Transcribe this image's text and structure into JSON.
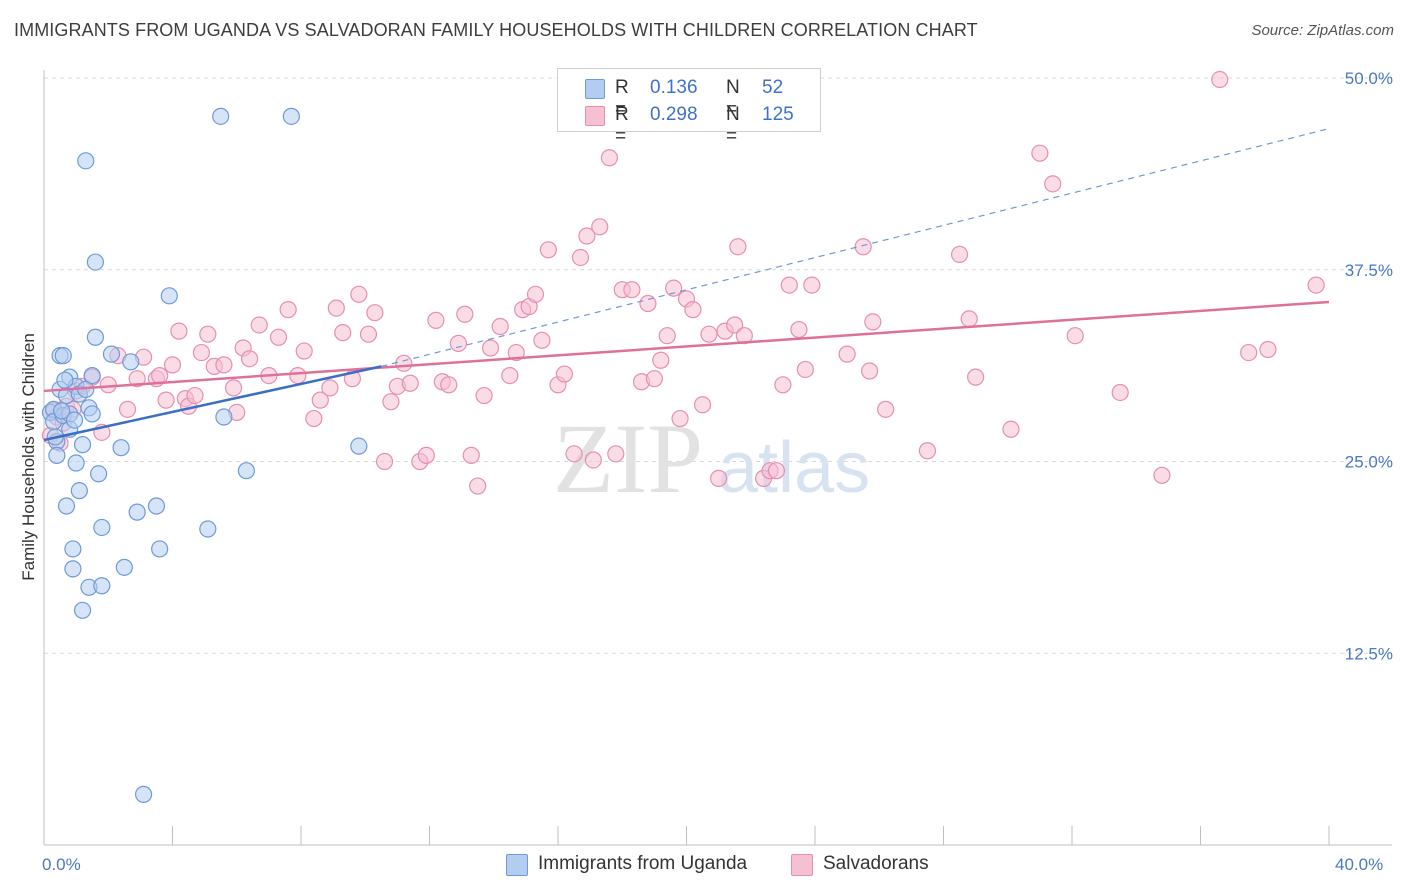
{
  "title": "IMMIGRANTS FROM UGANDA VS SALVADORAN FAMILY HOUSEHOLDS WITH CHILDREN CORRELATION CHART",
  "source": "Source: ZipAtlas.com",
  "watermark": {
    "zip": "ZIP",
    "atlas": "atlas"
  },
  "colors": {
    "blue_fill": "#b3cdf0",
    "blue_stroke": "#6f9ad9",
    "blue_line": "#3a6fc4",
    "pink_fill": "#f6c0d3",
    "pink_stroke": "#e68fb0",
    "pink_line": "#e0709a",
    "grid": "#d9d9d9",
    "axis_text": "#4a78c2"
  },
  "legend": {
    "series": [
      {
        "r_label": "R =",
        "r_value": "0.136",
        "n_label": "N =",
        "n_value": "52"
      },
      {
        "r_label": "R =",
        "r_value": "0.298",
        "n_label": "N =",
        "n_value": "125"
      }
    ]
  },
  "bottom_legend": [
    "Immigrants from Uganda",
    "Salvadorans"
  ],
  "chart_data": {
    "type": "scatter",
    "title": "IMMIGRANTS FROM UGANDA VS SALVADORAN FAMILY HOUSEHOLDS WITH CHILDREN CORRELATION CHART",
    "xlabel": "",
    "ylabel": "Family Households with Children",
    "xlim": [
      0,
      40
    ],
    "ylim": [
      0,
      52.5
    ],
    "x_tick_labels": [
      "0.0%",
      "40.0%"
    ],
    "y_ticks": [
      12.5,
      25.0,
      37.5,
      50.0
    ],
    "y_tick_labels": [
      "12.5%",
      "25.0%",
      "37.5%",
      "50.0%"
    ],
    "grid": true,
    "series": [
      {
        "name": "Immigrants from Uganda",
        "color": "#6f9ad9",
        "trend": {
          "x": [
            0,
            10.5
          ],
          "y": [
            26.4,
            31.2
          ],
          "dashed_to": [
            40,
            46.7
          ]
        },
        "points": [
          [
            0.2,
            28.2
          ],
          [
            0.3,
            28.4
          ],
          [
            0.3,
            27.6
          ],
          [
            0.4,
            26.3
          ],
          [
            0.4,
            25.4
          ],
          [
            0.5,
            31.9
          ],
          [
            0.5,
            29.7
          ],
          [
            0.6,
            31.9
          ],
          [
            0.6,
            28.0
          ],
          [
            0.7,
            29.3
          ],
          [
            0.7,
            22.1
          ],
          [
            0.8,
            30.5
          ],
          [
            0.8,
            28.1
          ],
          [
            0.8,
            27.1
          ],
          [
            0.9,
            19.3
          ],
          [
            0.9,
            18.0
          ],
          [
            1.0,
            29.9
          ],
          [
            1.0,
            24.9
          ],
          [
            1.1,
            29.4
          ],
          [
            1.1,
            23.1
          ],
          [
            1.2,
            15.3
          ],
          [
            1.2,
            26.1
          ],
          [
            1.3,
            44.6
          ],
          [
            1.3,
            29.7
          ],
          [
            1.4,
            16.8
          ],
          [
            1.4,
            28.5
          ],
          [
            1.5,
            28.1
          ],
          [
            1.5,
            30.6
          ],
          [
            1.6,
            38.0
          ],
          [
            1.6,
            33.1
          ],
          [
            1.7,
            24.2
          ],
          [
            1.8,
            20.7
          ],
          [
            1.8,
            16.9
          ],
          [
            2.1,
            32.0
          ],
          [
            2.4,
            25.9
          ],
          [
            2.5,
            18.1
          ],
          [
            2.7,
            31.5
          ],
          [
            2.9,
            21.7
          ],
          [
            3.1,
            3.3
          ],
          [
            3.5,
            22.1
          ],
          [
            3.6,
            19.3
          ],
          [
            3.9,
            35.8
          ],
          [
            5.1,
            20.6
          ],
          [
            5.5,
            47.5
          ],
          [
            5.6,
            27.9
          ],
          [
            6.3,
            24.4
          ],
          [
            7.7,
            47.5
          ],
          [
            9.8,
            26.0
          ],
          [
            0.35,
            26.6
          ],
          [
            0.55,
            28.3
          ],
          [
            0.65,
            30.3
          ],
          [
            0.95,
            27.7
          ]
        ]
      },
      {
        "name": "Salvadorans",
        "color": "#e68fb0",
        "trend": {
          "x": [
            0,
            40
          ],
          "y": [
            29.6,
            35.4
          ]
        },
        "points": [
          [
            0.2,
            26.7
          ],
          [
            0.3,
            28.3
          ],
          [
            0.4,
            27.9
          ],
          [
            0.5,
            26.2
          ],
          [
            0.6,
            27.5
          ],
          [
            0.7,
            28.6
          ],
          [
            0.9,
            28.4
          ],
          [
            1.0,
            29.6
          ],
          [
            1.2,
            29.9
          ],
          [
            1.5,
            30.5
          ],
          [
            1.8,
            26.9
          ],
          [
            2.0,
            30.0
          ],
          [
            2.3,
            31.9
          ],
          [
            2.6,
            28.4
          ],
          [
            2.9,
            30.4
          ],
          [
            3.1,
            31.8
          ],
          [
            3.5,
            30.4
          ],
          [
            3.6,
            30.6
          ],
          [
            3.8,
            29.0
          ],
          [
            4.0,
            31.3
          ],
          [
            4.2,
            33.5
          ],
          [
            4.4,
            29.1
          ],
          [
            4.5,
            28.6
          ],
          [
            4.7,
            29.3
          ],
          [
            4.9,
            32.1
          ],
          [
            5.1,
            33.3
          ],
          [
            5.3,
            31.2
          ],
          [
            5.6,
            31.3
          ],
          [
            5.9,
            29.8
          ],
          [
            6.0,
            28.2
          ],
          [
            6.2,
            32.4
          ],
          [
            6.4,
            31.7
          ],
          [
            6.7,
            33.9
          ],
          [
            7.0,
            30.6
          ],
          [
            7.3,
            33.1
          ],
          [
            7.6,
            34.9
          ],
          [
            7.9,
            30.6
          ],
          [
            8.1,
            32.2
          ],
          [
            8.4,
            27.8
          ],
          [
            8.6,
            29.0
          ],
          [
            8.9,
            29.8
          ],
          [
            9.1,
            35.0
          ],
          [
            9.3,
            33.4
          ],
          [
            9.6,
            30.4
          ],
          [
            9.8,
            35.9
          ],
          [
            10.1,
            33.3
          ],
          [
            10.3,
            34.7
          ],
          [
            10.6,
            25.0
          ],
          [
            10.8,
            28.9
          ],
          [
            11.0,
            29.9
          ],
          [
            11.2,
            31.4
          ],
          [
            11.4,
            30.1
          ],
          [
            11.7,
            25.0
          ],
          [
            11.9,
            25.4
          ],
          [
            12.2,
            34.2
          ],
          [
            12.4,
            30.2
          ],
          [
            12.6,
            30.0
          ],
          [
            12.9,
            32.7
          ],
          [
            13.1,
            34.6
          ],
          [
            13.3,
            25.4
          ],
          [
            13.5,
            23.4
          ],
          [
            13.7,
            29.3
          ],
          [
            13.9,
            32.4
          ],
          [
            14.2,
            33.8
          ],
          [
            14.5,
            30.6
          ],
          [
            14.7,
            32.1
          ],
          [
            14.9,
            34.9
          ],
          [
            15.1,
            35.1
          ],
          [
            15.3,
            35.9
          ],
          [
            15.5,
            32.9
          ],
          [
            15.7,
            38.8
          ],
          [
            16.0,
            30.0
          ],
          [
            16.2,
            30.7
          ],
          [
            16.5,
            25.5
          ],
          [
            16.7,
            38.3
          ],
          [
            16.9,
            39.7
          ],
          [
            17.1,
            25.1
          ],
          [
            17.3,
            40.3
          ],
          [
            17.6,
            44.8
          ],
          [
            17.8,
            25.5
          ],
          [
            18.0,
            36.2
          ],
          [
            18.3,
            36.2
          ],
          [
            18.6,
            30.2
          ],
          [
            18.8,
            35.3
          ],
          [
            19.0,
            30.4
          ],
          [
            19.2,
            31.6
          ],
          [
            19.4,
            33.2
          ],
          [
            19.6,
            36.3
          ],
          [
            19.8,
            27.8
          ],
          [
            20.0,
            35.6
          ],
          [
            20.2,
            34.9
          ],
          [
            20.5,
            28.7
          ],
          [
            20.7,
            33.3
          ],
          [
            21.0,
            23.9
          ],
          [
            21.2,
            33.5
          ],
          [
            21.5,
            33.9
          ],
          [
            21.6,
            39.0
          ],
          [
            21.8,
            33.2
          ],
          [
            22.4,
            23.9
          ],
          [
            22.6,
            24.4
          ],
          [
            22.8,
            24.4
          ],
          [
            23.0,
            30.0
          ],
          [
            23.2,
            36.5
          ],
          [
            23.5,
            33.6
          ],
          [
            23.7,
            31.0
          ],
          [
            23.9,
            36.5
          ],
          [
            25.0,
            32.0
          ],
          [
            25.5,
            39.0
          ],
          [
            25.7,
            30.9
          ],
          [
            25.8,
            34.1
          ],
          [
            26.2,
            28.4
          ],
          [
            27.5,
            25.7
          ],
          [
            28.5,
            38.5
          ],
          [
            28.8,
            34.3
          ],
          [
            29.0,
            30.5
          ],
          [
            30.1,
            27.1
          ],
          [
            31.0,
            45.1
          ],
          [
            31.4,
            43.1
          ],
          [
            32.1,
            33.2
          ],
          [
            33.5,
            29.5
          ],
          [
            34.8,
            24.1
          ],
          [
            36.6,
            49.9
          ],
          [
            37.5,
            32.1
          ],
          [
            38.1,
            32.3
          ],
          [
            39.6,
            36.5
          ]
        ]
      }
    ]
  }
}
